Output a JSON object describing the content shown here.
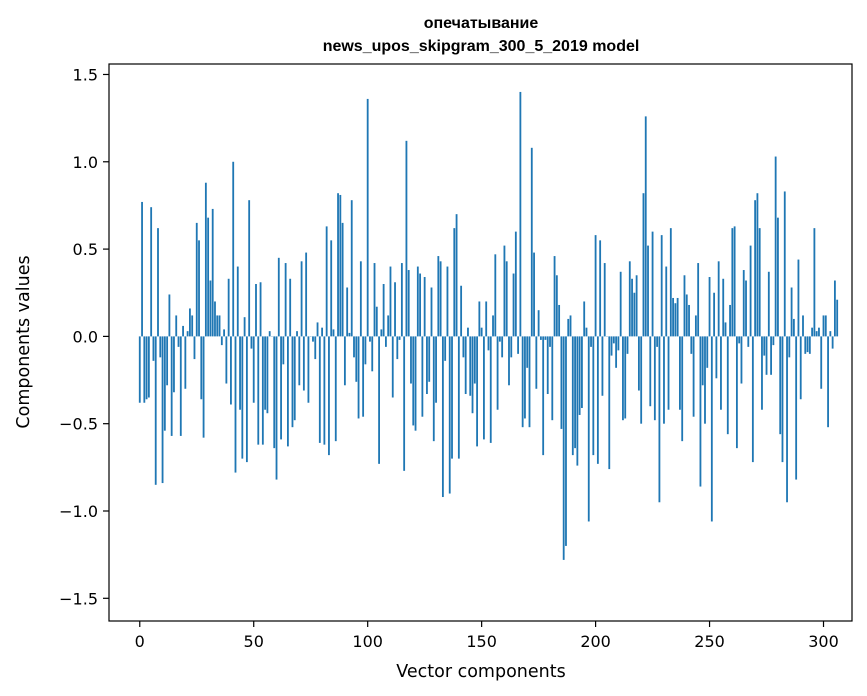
{
  "chart_data": {
    "type": "bar",
    "title": [
      "опечатывание",
      "news_upos_skipgram_300_5_2019 model"
    ],
    "xlabel": "Vector components",
    "ylabel": "Components values",
    "xlim": [
      -13.5,
      312.5
    ],
    "ylim": [
      -1.63,
      1.56
    ],
    "xticks": [
      0,
      50,
      100,
      150,
      200,
      250,
      300
    ],
    "xtick_labels": [
      "0",
      "50",
      "100",
      "150",
      "200",
      "250",
      "300"
    ],
    "yticks": [
      -1.5,
      -1.0,
      -0.5,
      0.0,
      0.5,
      1.0,
      1.5
    ],
    "ytick_labels": [
      "−1.5",
      "−1.0",
      "−0.5",
      "0.0",
      "0.5",
      "1.0",
      "1.5"
    ],
    "bar_color": "#1f77b4",
    "values": [
      -0.38,
      0.77,
      -0.38,
      -0.36,
      -0.35,
      0.74,
      -0.14,
      -0.85,
      0.62,
      -0.12,
      -0.84,
      -0.54,
      -0.28,
      0.24,
      -0.57,
      -0.32,
      0.12,
      -0.06,
      -0.57,
      0.06,
      -0.3,
      0.03,
      0.16,
      0.12,
      -0.13,
      0.65,
      0.55,
      -0.36,
      -0.58,
      0.88,
      0.68,
      0.32,
      0.73,
      0.2,
      0.12,
      0.12,
      -0.05,
      0.04,
      -0.27,
      0.33,
      -0.39,
      1.0,
      -0.78,
      0.4,
      -0.42,
      -0.7,
      0.11,
      -0.72,
      0.78,
      -0.07,
      -0.38,
      0.3,
      -0.62,
      0.31,
      -0.62,
      -0.42,
      -0.44,
      0.03,
      0.0,
      -0.64,
      -0.82,
      0.45,
      -0.59,
      -0.16,
      0.42,
      -0.63,
      0.33,
      -0.52,
      -0.48,
      0.03,
      -0.28,
      0.43,
      -0.31,
      0.48,
      -0.38,
      0.0,
      -0.03,
      -0.13,
      0.08,
      -0.61,
      0.05,
      -0.62,
      0.63,
      -0.68,
      0.55,
      0.04,
      -0.6,
      0.82,
      0.81,
      0.65,
      -0.28,
      0.28,
      0.02,
      0.78,
      -0.12,
      -0.26,
      -0.47,
      0.43,
      -0.46,
      -0.16,
      1.36,
      -0.03,
      -0.2,
      0.42,
      0.17,
      -0.73,
      0.04,
      0.3,
      -0.06,
      0.12,
      0.4,
      -0.35,
      0.31,
      -0.13,
      -0.02,
      0.42,
      -0.77,
      1.12,
      0.38,
      -0.27,
      -0.51,
      -0.54,
      0.4,
      0.36,
      -0.46,
      0.34,
      -0.33,
      -0.26,
      0.28,
      -0.6,
      -0.38,
      0.46,
      0.43,
      -0.92,
      -0.14,
      0.4,
      -0.9,
      -0.7,
      0.62,
      0.7,
      -0.7,
      0.29,
      -0.12,
      -0.33,
      0.05,
      -0.34,
      -0.44,
      -0.27,
      -0.63,
      0.2,
      0.05,
      -0.59,
      0.2,
      -0.08,
      -0.61,
      0.12,
      0.47,
      -0.42,
      -0.03,
      -0.12,
      0.52,
      0.43,
      -0.28,
      -0.12,
      0.36,
      0.6,
      -0.1,
      1.4,
      -0.52,
      -0.47,
      -0.18,
      -0.52,
      1.08,
      0.48,
      -0.3,
      0.15,
      -0.02,
      -0.68,
      -0.02,
      -0.33,
      -0.06,
      -0.48,
      0.46,
      0.35,
      0.18,
      -0.53,
      -1.28,
      -1.2,
      0.1,
      0.12,
      -0.68,
      -0.64,
      -0.74,
      -0.45,
      -0.41,
      0.2,
      0.05,
      -1.06,
      -0.06,
      -0.68,
      0.58,
      -0.73,
      0.55,
      -0.34,
      0.42,
      0.0,
      -0.76,
      -0.11,
      -0.04,
      -0.18,
      -0.08,
      0.37,
      -0.48,
      -0.47,
      -0.1,
      0.43,
      0.33,
      0.25,
      0.35,
      -0.31,
      -0.5,
      0.82,
      1.26,
      0.52,
      -0.4,
      0.6,
      -0.48,
      -0.06,
      -0.95,
      0.58,
      -0.5,
      0.4,
      -0.42,
      0.62,
      0.22,
      0.19,
      0.22,
      -0.42,
      -0.6,
      0.35,
      0.24,
      0.18,
      -0.1,
      -0.46,
      0.12,
      0.42,
      -0.86,
      -0.28,
      -0.5,
      -0.18,
      0.34,
      -1.06,
      0.25,
      -0.24,
      0.43,
      -0.42,
      0.33,
      0.08,
      -0.56,
      0.18,
      0.62,
      0.63,
      -0.64,
      -0.04,
      -0.27,
      0.38,
      0.32,
      -0.06,
      0.52,
      -0.72,
      0.78,
      0.82,
      0.62,
      -0.42,
      -0.11,
      -0.22,
      0.37,
      -0.22,
      -0.05,
      1.03,
      0.68,
      -0.56,
      -0.72,
      0.83,
      -0.95,
      -0.12,
      0.28,
      0.1,
      -0.82,
      0.44,
      -0.36,
      0.12,
      -0.1,
      -0.09,
      -0.1,
      0.05,
      0.62,
      0.03,
      0.05,
      -0.3,
      0.12,
      0.12,
      -0.52,
      0.03,
      -0.07,
      0.32,
      0.21
    ]
  }
}
